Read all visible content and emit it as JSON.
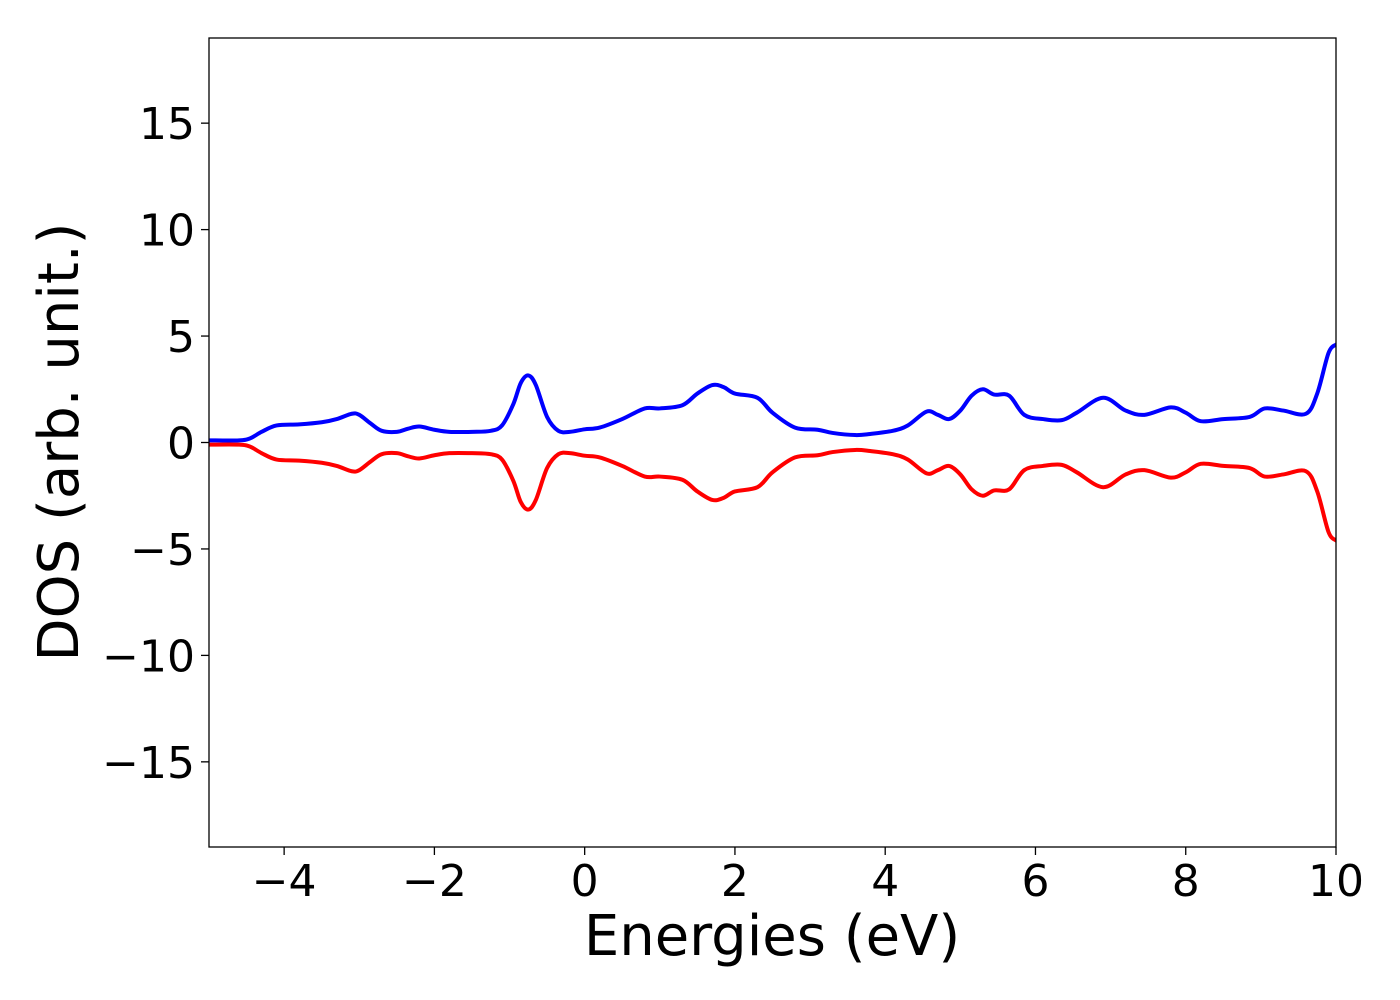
{
  "chart_data": {
    "type": "line",
    "title": "",
    "xlabel": "Energies (eV)",
    "ylabel": "DOS (arb. unit.)",
    "xlim": [
      -5,
      10
    ],
    "ylim": [
      -19,
      19
    ],
    "xticks": [
      -4,
      -2,
      0,
      2,
      4,
      6,
      8,
      10
    ],
    "xtick_labels": [
      "−4",
      "−2",
      "0",
      "2",
      "4",
      "6",
      "8",
      "10"
    ],
    "yticks": [
      -15,
      -10,
      -5,
      0,
      5,
      10,
      15
    ],
    "ytick_labels": [
      "−15",
      "−10",
      "−5",
      "0",
      "5",
      "10",
      "15"
    ],
    "grid": false,
    "legend": false,
    "colors": {
      "up": "#0000ff",
      "down": "#ff0000",
      "axes": "#000000"
    },
    "series": [
      {
        "color": "#0000ff",
        "points": [
          [
            -5.0,
            0.1
          ],
          [
            -4.6,
            0.1
          ],
          [
            -4.45,
            0.2
          ],
          [
            -4.3,
            0.5
          ],
          [
            -4.1,
            0.8
          ],
          [
            -3.8,
            0.85
          ],
          [
            -3.5,
            0.95
          ],
          [
            -3.3,
            1.1
          ],
          [
            -3.1,
            1.35
          ],
          [
            -3.0,
            1.3
          ],
          [
            -2.85,
            0.9
          ],
          [
            -2.7,
            0.55
          ],
          [
            -2.5,
            0.5
          ],
          [
            -2.35,
            0.65
          ],
          [
            -2.2,
            0.75
          ],
          [
            -2.0,
            0.6
          ],
          [
            -1.8,
            0.5
          ],
          [
            -1.5,
            0.5
          ],
          [
            -1.25,
            0.55
          ],
          [
            -1.1,
            0.8
          ],
          [
            -0.95,
            1.8
          ],
          [
            -0.85,
            2.8
          ],
          [
            -0.75,
            3.15
          ],
          [
            -0.65,
            2.7
          ],
          [
            -0.5,
            1.2
          ],
          [
            -0.35,
            0.55
          ],
          [
            -0.2,
            0.5
          ],
          [
            0.0,
            0.62
          ],
          [
            0.2,
            0.7
          ],
          [
            0.5,
            1.1
          ],
          [
            0.8,
            1.6
          ],
          [
            1.0,
            1.6
          ],
          [
            1.3,
            1.75
          ],
          [
            1.5,
            2.3
          ],
          [
            1.7,
            2.7
          ],
          [
            1.85,
            2.6
          ],
          [
            2.0,
            2.3
          ],
          [
            2.3,
            2.1
          ],
          [
            2.5,
            1.4
          ],
          [
            2.8,
            0.7
          ],
          [
            3.1,
            0.6
          ],
          [
            3.3,
            0.45
          ],
          [
            3.6,
            0.35
          ],
          [
            3.8,
            0.4
          ],
          [
            4.1,
            0.55
          ],
          [
            4.3,
            0.8
          ],
          [
            4.55,
            1.45
          ],
          [
            4.7,
            1.3
          ],
          [
            4.85,
            1.1
          ],
          [
            5.0,
            1.5
          ],
          [
            5.15,
            2.2
          ],
          [
            5.3,
            2.5
          ],
          [
            5.45,
            2.25
          ],
          [
            5.65,
            2.2
          ],
          [
            5.85,
            1.3
          ],
          [
            6.1,
            1.1
          ],
          [
            6.35,
            1.05
          ],
          [
            6.55,
            1.4
          ],
          [
            6.9,
            2.1
          ],
          [
            7.2,
            1.5
          ],
          [
            7.45,
            1.3
          ],
          [
            7.8,
            1.65
          ],
          [
            8.0,
            1.4
          ],
          [
            8.2,
            1.0
          ],
          [
            8.5,
            1.1
          ],
          [
            8.85,
            1.2
          ],
          [
            9.05,
            1.6
          ],
          [
            9.3,
            1.5
          ],
          [
            9.6,
            1.35
          ],
          [
            9.75,
            2.3
          ],
          [
            9.9,
            4.2
          ],
          [
            10.0,
            4.6
          ]
        ]
      },
      {
        "color": "#ff0000",
        "points": [
          [
            -5.0,
            -0.1
          ],
          [
            -4.6,
            -0.1
          ],
          [
            -4.45,
            -0.2
          ],
          [
            -4.3,
            -0.5
          ],
          [
            -4.1,
            -0.8
          ],
          [
            -3.8,
            -0.85
          ],
          [
            -3.5,
            -0.95
          ],
          [
            -3.3,
            -1.1
          ],
          [
            -3.1,
            -1.35
          ],
          [
            -3.0,
            -1.3
          ],
          [
            -2.85,
            -0.9
          ],
          [
            -2.7,
            -0.55
          ],
          [
            -2.5,
            -0.5
          ],
          [
            -2.35,
            -0.65
          ],
          [
            -2.2,
            -0.75
          ],
          [
            -2.0,
            -0.6
          ],
          [
            -1.8,
            -0.5
          ],
          [
            -1.5,
            -0.5
          ],
          [
            -1.25,
            -0.55
          ],
          [
            -1.1,
            -0.8
          ],
          [
            -0.95,
            -1.8
          ],
          [
            -0.85,
            -2.8
          ],
          [
            -0.75,
            -3.15
          ],
          [
            -0.65,
            -2.7
          ],
          [
            -0.5,
            -1.2
          ],
          [
            -0.35,
            -0.55
          ],
          [
            -0.2,
            -0.5
          ],
          [
            0.0,
            -0.62
          ],
          [
            0.2,
            -0.7
          ],
          [
            0.5,
            -1.1
          ],
          [
            0.8,
            -1.6
          ],
          [
            1.0,
            -1.6
          ],
          [
            1.3,
            -1.75
          ],
          [
            1.5,
            -2.3
          ],
          [
            1.7,
            -2.7
          ],
          [
            1.85,
            -2.6
          ],
          [
            2.0,
            -2.3
          ],
          [
            2.3,
            -2.1
          ],
          [
            2.5,
            -1.4
          ],
          [
            2.8,
            -0.7
          ],
          [
            3.1,
            -0.6
          ],
          [
            3.3,
            -0.45
          ],
          [
            3.6,
            -0.35
          ],
          [
            3.8,
            -0.4
          ],
          [
            4.1,
            -0.55
          ],
          [
            4.3,
            -0.8
          ],
          [
            4.55,
            -1.45
          ],
          [
            4.7,
            -1.3
          ],
          [
            4.85,
            -1.1
          ],
          [
            5.0,
            -1.5
          ],
          [
            5.15,
            -2.2
          ],
          [
            5.3,
            -2.5
          ],
          [
            5.45,
            -2.25
          ],
          [
            5.65,
            -2.2
          ],
          [
            5.85,
            -1.3
          ],
          [
            6.1,
            -1.1
          ],
          [
            6.35,
            -1.05
          ],
          [
            6.55,
            -1.4
          ],
          [
            6.9,
            -2.1
          ],
          [
            7.2,
            -1.5
          ],
          [
            7.45,
            -1.3
          ],
          [
            7.8,
            -1.65
          ],
          [
            8.0,
            -1.4
          ],
          [
            8.2,
            -1.0
          ],
          [
            8.5,
            -1.1
          ],
          [
            8.85,
            -1.2
          ],
          [
            9.05,
            -1.6
          ],
          [
            9.3,
            -1.5
          ],
          [
            9.6,
            -1.35
          ],
          [
            9.75,
            -2.3
          ],
          [
            9.9,
            -4.2
          ],
          [
            10.0,
            -4.6
          ]
        ]
      }
    ]
  }
}
